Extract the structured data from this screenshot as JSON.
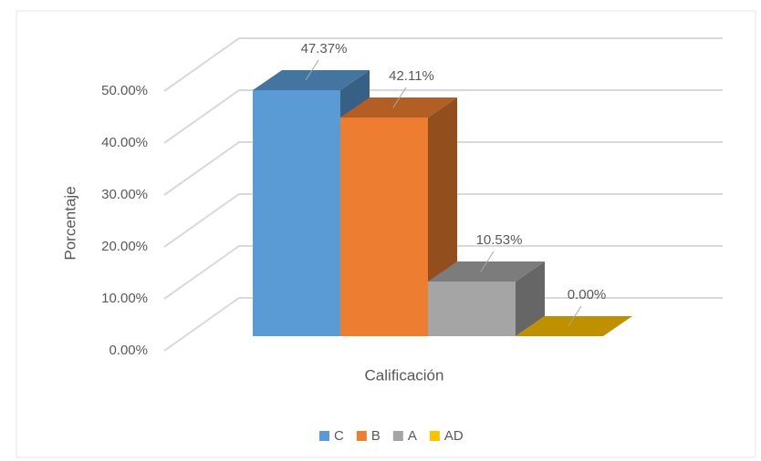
{
  "chart_data": {
    "type": "bar3d",
    "y_axis_label": "Porcentaje",
    "x_axis_label": "Calificación",
    "categories": [
      null
    ],
    "series": [
      {
        "name": "C",
        "color": "#5b9bd5",
        "values": [
          47.37
        ],
        "value_labels": [
          "47.37%"
        ]
      },
      {
        "name": "B",
        "color": "#ed7d31",
        "values": [
          42.11
        ],
        "value_labels": [
          "42.11%"
        ]
      },
      {
        "name": "A",
        "color": "#a5a5a5",
        "values": [
          10.53
        ],
        "value_labels": [
          "10.53%"
        ]
      },
      {
        "name": "AD",
        "color": "#ffc000",
        "values": [
          0
        ],
        "value_labels": [
          "0.00%"
        ]
      }
    ],
    "ylim": [
      0,
      50
    ],
    "yticks": [
      {
        "value": 0,
        "label": "0.00%"
      },
      {
        "value": 10,
        "label": "10.00%"
      },
      {
        "value": 20,
        "label": "20.00%"
      },
      {
        "value": 30,
        "label": "30.00%"
      },
      {
        "value": 40,
        "label": "40.00%"
      },
      {
        "value": 50,
        "label": "50.00%"
      }
    ],
    "grid": true,
    "legend": "bottom"
  }
}
